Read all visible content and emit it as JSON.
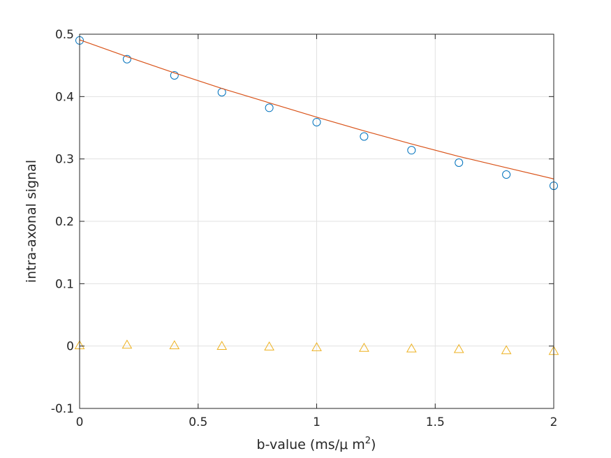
{
  "chart_data": {
    "type": "scatter",
    "title": "",
    "xlabel": "b-value (ms/μ m",
    "xlabel_sup": "2",
    "xlabel_close": ")",
    "ylabel": "intra-axonal signal",
    "xlim": [
      0,
      2
    ],
    "ylim": [
      -0.1,
      0.5
    ],
    "x_ticks": [
      "0",
      "0.5",
      "1",
      "1.5",
      "2"
    ],
    "y_ticks": [
      "-0.1",
      "0",
      "0.1",
      "0.2",
      "0.3",
      "0.4",
      "0.5"
    ],
    "grid": true,
    "legend": "none",
    "series": [
      {
        "marker": "circle",
        "color": "#0072BD",
        "x": [
          0,
          0.2,
          0.4,
          0.6,
          0.8,
          1.0,
          1.2,
          1.4,
          1.6,
          1.8,
          2.0
        ],
        "y": [
          0.49,
          0.46,
          0.434,
          0.407,
          0.382,
          0.359,
          0.336,
          0.314,
          0.294,
          0.275,
          0.257
        ]
      },
      {
        "marker": "line",
        "color": "#D95319",
        "x": [
          0,
          0.2,
          0.4,
          0.6,
          0.8,
          1.0,
          1.2,
          1.4,
          1.6,
          1.8,
          2.0
        ],
        "y": [
          0.491,
          0.464,
          0.438,
          0.413,
          0.39,
          0.367,
          0.345,
          0.324,
          0.304,
          0.286,
          0.268
        ]
      },
      {
        "marker": "triangle",
        "color": "#EDB120",
        "x": [
          0,
          0.2,
          0.4,
          0.6,
          0.8,
          1.0,
          1.2,
          1.4,
          1.6,
          1.8,
          2.0
        ],
        "y": [
          0.001,
          0.002,
          0.001,
          0.0,
          -0.001,
          -0.002,
          -0.003,
          -0.004,
          -0.005,
          -0.007,
          -0.008
        ]
      }
    ]
  }
}
